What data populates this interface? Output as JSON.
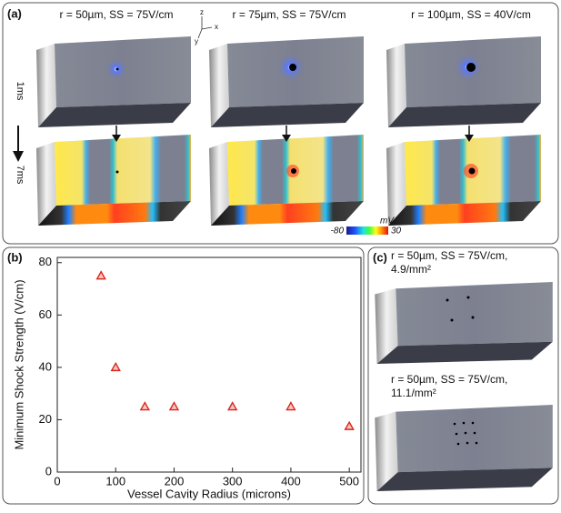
{
  "panel_a": {
    "label": "(a)",
    "columns": [
      "r = 50µm, SS = 75V/cm",
      "r = 75µm, SS = 75V/cm",
      "r = 100µm, SS = 40V/cm"
    ],
    "rows": [
      "1ms",
      "7ms"
    ],
    "axes": [
      "z",
      "x",
      "y"
    ],
    "colorbar": {
      "unit": "mV",
      "min": "-80",
      "max": "30"
    }
  },
  "panel_b": {
    "label": "(b)"
  },
  "chart_data": {
    "type": "scatter",
    "x_label": "Vessel Cavity Radius (microns)",
    "y_label": "Minimum Shock Strength (V/cm)",
    "x": [
      75,
      100,
      150,
      200,
      300,
      400,
      500
    ],
    "values": [
      75,
      40,
      25,
      25,
      25,
      25,
      17.5
    ],
    "xlim": [
      0,
      520
    ],
    "ylim": [
      0,
      82
    ],
    "xticks": [
      0,
      100,
      200,
      300,
      400,
      500
    ],
    "yticks": [
      0,
      20,
      40,
      60,
      80
    ],
    "marker_color": "#d9261c",
    "marker_fill": "#f6c6c2"
  },
  "panel_c": {
    "label": "(c)",
    "captions": [
      [
        "r = 50µm, SS = 75V/cm,",
        "4.9/mm²"
      ],
      [
        "r = 50µm, SS = 75V/cm,",
        "11.1/mm²"
      ]
    ]
  }
}
